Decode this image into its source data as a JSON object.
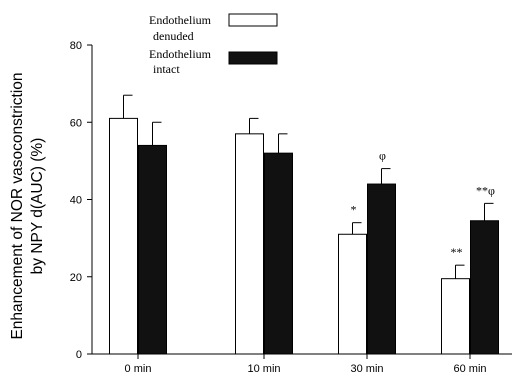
{
  "chart_data": {
    "type": "bar",
    "categories": [
      "0 min",
      "10 min",
      "30 min",
      "60 min"
    ],
    "series": [
      {
        "name": "Endothelium denuded",
        "values": [
          61,
          57,
          31,
          19.5
        ],
        "errors": [
          6,
          4,
          3,
          3.5
        ],
        "fill": "#ffffff",
        "stroke": "#000000"
      },
      {
        "name": "Endothelium intact",
        "values": [
          54,
          52,
          44,
          34.5
        ],
        "errors": [
          6,
          5,
          4,
          4.5
        ],
        "fill": "#111111",
        "stroke": "#000000"
      }
    ],
    "annotations": [
      {
        "category": 2,
        "series": 0,
        "text": "*"
      },
      {
        "category": 2,
        "series": 1,
        "text": "φ"
      },
      {
        "category": 3,
        "series": 0,
        "text": "**"
      },
      {
        "category": 3,
        "series": 1,
        "text": "**φ"
      }
    ],
    "ylabel_line1": "Enhancement of NOR vasoconstriction",
    "ylabel_line2": "by NPY   d(AUC) (%)",
    "xlabel": "",
    "ylim": [
      0,
      80
    ],
    "yticks": [
      0,
      20,
      40,
      60,
      80
    ],
    "grid": false,
    "legend_position": "top-center",
    "legend": [
      {
        "line1": "Endothelium",
        "line2": "denuded",
        "series": 0
      },
      {
        "line1": "Endothelium",
        "line2": "intact",
        "series": 1
      }
    ]
  }
}
